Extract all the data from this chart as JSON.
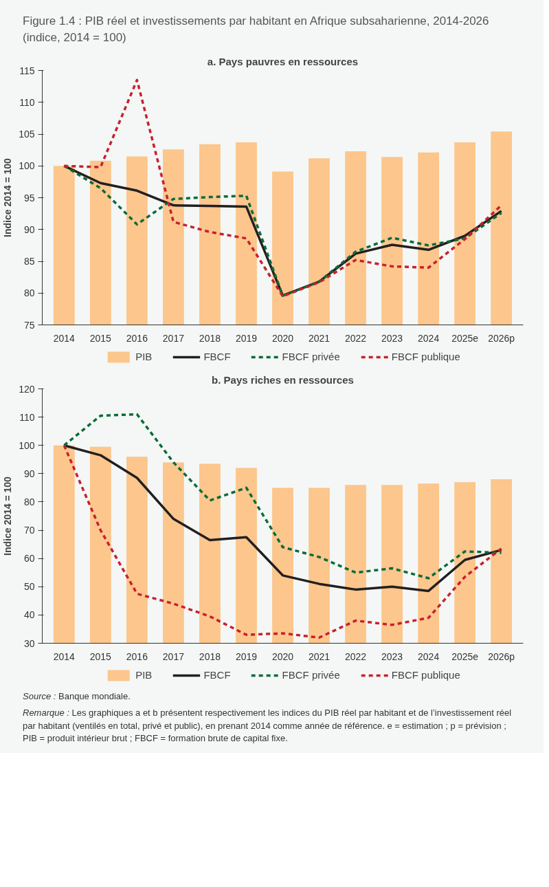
{
  "chart_data": [
    {
      "type": "bar",
      "title": "Figure 1.4 : PIB réel et investissements par habitant en Afrique subsaharienne, 2014-2026 (indice, 2014 = 100)",
      "subtitle": "a. Pays pauvres en ressources",
      "ylabel": "Indice 2014 = 100",
      "categories": [
        "2014",
        "2015",
        "2016",
        "2017",
        "2018",
        "2019",
        "2020",
        "2021",
        "2022",
        "2023",
        "2024",
        "2025e",
        "2026p"
      ],
      "ylim": [
        75,
        115
      ],
      "yticks": [
        75,
        80,
        85,
        90,
        95,
        100,
        105,
        110,
        115
      ],
      "legend": "bottom",
      "series": [
        {
          "name": "PIB",
          "color": "#fcc68c",
          "values": [
            100,
            100.8,
            101.5,
            102.6,
            103.4,
            103.7,
            99.1,
            101.2,
            102.3,
            101.4,
            102.1,
            103.7,
            105.4
          ]
        },
        {
          "name": "FBCF",
          "type": "line",
          "line_style": "solid",
          "color": "#231f20",
          "values": [
            100,
            97.3,
            96.1,
            93.8,
            93.7,
            93.6,
            79.6,
            81.8,
            86.2,
            87.6,
            86.8,
            89.0,
            92.9
          ]
        },
        {
          "name": "FBCF privée",
          "type": "line",
          "line_style": "dashed",
          "color": "#0a6b3a",
          "values": [
            100,
            96.5,
            90.8,
            94.8,
            95.1,
            95.3,
            79.6,
            81.8,
            86.5,
            88.7,
            87.5,
            88.6,
            92.6
          ]
        },
        {
          "name": "FBCF publique",
          "type": "line",
          "line_style": "dashed",
          "color": "#c8202f",
          "values": [
            100,
            99.8,
            113.5,
            91.2,
            89.6,
            88.6,
            79.5,
            81.7,
            85.2,
            84.2,
            84.0,
            88.5,
            93.8
          ]
        }
      ]
    },
    {
      "type": "bar",
      "title": "b. Pays riches en ressources",
      "ylabel": "Indice 2014 = 100",
      "categories": [
        "2014",
        "2015",
        "2016",
        "2017",
        "2018",
        "2019",
        "2020",
        "2021",
        "2022",
        "2023",
        "2024",
        "2025e",
        "2026p"
      ],
      "ylim": [
        30,
        120
      ],
      "yticks": [
        30,
        40,
        50,
        60,
        70,
        80,
        90,
        100,
        110,
        120
      ],
      "legend": "bottom",
      "annotations": [
        "Source : Banque mondiale.",
        "Remarque : Les graphiques a et b présentent respectivement les indices du PIB réel par habitant et de l’investissement réel par habitant (ventilés en total, privé et public), en prenant 2014 comme année de référence. e = estimation ; p = prévision ; PIB = produit intérieur brut ; FBCF = formation brute de capital fixe."
      ],
      "series": [
        {
          "name": "PIB",
          "color": "#fcc68c",
          "values": [
            100,
            99.5,
            96,
            94,
            93.5,
            92,
            85,
            85,
            86,
            86,
            86.5,
            87,
            88
          ]
        },
        {
          "name": "FBCF",
          "type": "line",
          "line_style": "solid",
          "color": "#231f20",
          "values": [
            100,
            96.5,
            88.5,
            74,
            66.5,
            67.5,
            54,
            51,
            49,
            50,
            48.5,
            59.5,
            63
          ]
        },
        {
          "name": "FBCF privée",
          "type": "line",
          "line_style": "dashed",
          "color": "#0a6b3a",
          "values": [
            100,
            110.5,
            111,
            94,
            80.5,
            85,
            64,
            60.5,
            55,
            56.5,
            53,
            62.5,
            62
          ]
        },
        {
          "name": "FBCF publique",
          "type": "line",
          "line_style": "dashed",
          "color": "#c8202f",
          "values": [
            100,
            70,
            47.5,
            44,
            39.5,
            33,
            33.5,
            32,
            38,
            36.5,
            39,
            53.5,
            63.5
          ]
        }
      ]
    }
  ]
}
